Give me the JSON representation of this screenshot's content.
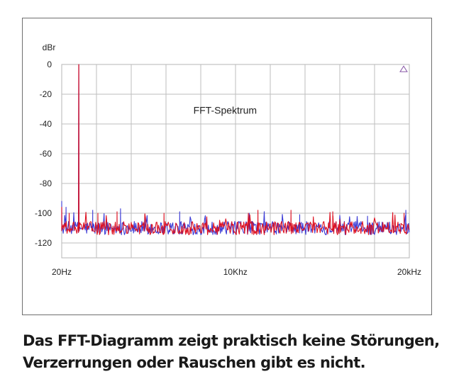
{
  "chart_data": {
    "type": "line",
    "annotation": "FFT-Spektrum",
    "ylabel": "dBr",
    "ylim": [
      -130,
      0
    ],
    "yticks": [
      0,
      -20,
      -40,
      -60,
      -80,
      -100,
      -120
    ],
    "ytick_labels": [
      "0",
      "-20",
      "-40",
      "-60",
      "-80",
      "-100",
      "-120"
    ],
    "xlim": [
      20,
      20000
    ],
    "xticks": [
      20,
      10000,
      20000
    ],
    "xtick_labels": [
      "20Hz",
      "10Khz",
      "20kHz"
    ],
    "grid": true,
    "series_colors": [
      "#3a3ad6",
      "#dd1020"
    ],
    "series": [
      {
        "peaks": [
          [
            1000,
            0
          ]
        ],
        "spurs": [
          [
            20,
            -92
          ],
          [
            270,
            -96
          ],
          [
            1800,
            -98
          ],
          [
            3400,
            -97
          ],
          [
            4800,
            -101
          ],
          [
            6800,
            -99
          ],
          [
            10800,
            -100
          ],
          [
            13700,
            -101
          ],
          [
            17600,
            -102
          ],
          [
            19800,
            -98
          ]
        ],
        "noise_floor": -110
      },
      {
        "peaks": [
          [
            1000,
            0
          ]
        ],
        "spurs": [
          [
            20,
            -96
          ],
          [
            450,
            -100
          ],
          [
            2100,
            -100
          ],
          [
            3200,
            -99
          ],
          [
            5900,
            -100
          ],
          [
            11300,
            -98
          ],
          [
            13200,
            -98
          ],
          [
            15600,
            -99
          ],
          [
            19700,
            -100
          ]
        ],
        "noise_floor": -110
      }
    ]
  },
  "caption": "Das FFT-Diagramm zeigt praktisch keine Störungen, Verzerrungen oder Rauschen gibt es nicht."
}
